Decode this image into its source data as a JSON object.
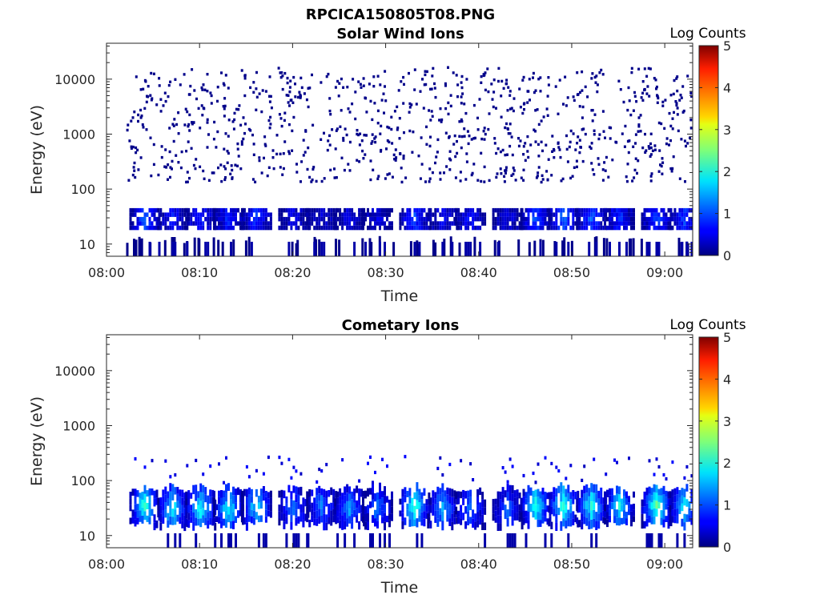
{
  "figure": {
    "title": "RPCICA150805T08.PNG"
  },
  "chart_data": [
    {
      "type": "heatmap",
      "title": "Solar Wind Ions",
      "xlabel": "Time",
      "ylabel": "Energy (eV)",
      "x_ticks": [
        "08:00",
        "08:10",
        "08:20",
        "08:30",
        "08:40",
        "08:50",
        "09:00"
      ],
      "xlim": [
        "08:00",
        "09:03"
      ],
      "y_scale": "log",
      "y_ticks": [
        "10",
        "100",
        "1000",
        "10000"
      ],
      "ylim": [
        6,
        45000
      ],
      "colorbar": {
        "label": "Log Counts",
        "range": [
          0,
          5
        ],
        "ticks": [
          "0",
          "1",
          "2",
          "3",
          "4",
          "5"
        ],
        "colormap": "jet"
      },
      "data_start": "08:02",
      "data_end": "09:03",
      "bursts": [
        {
          "time": "08:04",
          "peak_energy": 30,
          "log_counts": 1.1
        },
        {
          "time": "08:07",
          "peak_energy": 30,
          "log_counts": 0.7
        },
        {
          "time": "08:10",
          "peak_energy": 30,
          "log_counts": 0.8
        },
        {
          "time": "08:13",
          "peak_energy": 30,
          "log_counts": 0.8
        },
        {
          "time": "08:16",
          "peak_energy": 30,
          "log_counts": 0.9
        },
        {
          "time": "08:20",
          "peak_energy": 30,
          "log_counts": 0.5
        },
        {
          "time": "08:23",
          "peak_energy": 30,
          "log_counts": 0.5
        },
        {
          "time": "08:26",
          "peak_energy": 30,
          "log_counts": 0.5
        },
        {
          "time": "08:29",
          "peak_energy": 30,
          "log_counts": 0.5
        },
        {
          "time": "08:33",
          "peak_energy": 30,
          "log_counts": 1.0
        },
        {
          "time": "08:36",
          "peak_energy": 30,
          "log_counts": 0.6
        },
        {
          "time": "08:39",
          "peak_energy": 30,
          "log_counts": 0.7
        },
        {
          "time": "08:43",
          "peak_energy": 30,
          "log_counts": 0.5
        },
        {
          "time": "08:46",
          "peak_energy": 30,
          "log_counts": 1.1
        },
        {
          "time": "08:49",
          "peak_energy": 30,
          "log_counts": 1.2
        },
        {
          "time": "08:52",
          "peak_energy": 30,
          "log_counts": 1.1
        },
        {
          "time": "08:55",
          "peak_energy": 30,
          "log_counts": 0.9
        },
        {
          "time": "08:59",
          "peak_energy": 30,
          "log_counts": 1.0
        },
        {
          "time": "09:02",
          "peak_energy": 30,
          "log_counts": 1.0
        }
      ],
      "background": "sparse single counts (log 0) scattered 150–10000 eV, occasional spikes to 15000 eV"
    },
    {
      "type": "heatmap",
      "title": "Cometary Ions",
      "xlabel": "Time",
      "ylabel": "Energy (eV)",
      "x_ticks": [
        "08:00",
        "08:10",
        "08:20",
        "08:30",
        "08:40",
        "08:50",
        "09:00"
      ],
      "xlim": [
        "08:00",
        "09:03"
      ],
      "y_scale": "log",
      "y_ticks": [
        "10",
        "100",
        "1000",
        "10000"
      ],
      "ylim": [
        6,
        45000
      ],
      "colorbar": {
        "label": "Log Counts",
        "range": [
          0,
          5
        ],
        "ticks": [
          "0",
          "1",
          "2",
          "3",
          "4",
          "5"
        ],
        "colormap": "jet"
      },
      "bursts": [
        {
          "time": "08:04",
          "peak_energy": 35,
          "log_counts": 2.2
        },
        {
          "time": "08:07",
          "peak_energy": 30,
          "log_counts": 2.0
        },
        {
          "time": "08:10",
          "peak_energy": 30,
          "log_counts": 2.1
        },
        {
          "time": "08:13",
          "peak_energy": 30,
          "log_counts": 2.0
        },
        {
          "time": "08:16",
          "peak_energy": 35,
          "log_counts": 1.9
        },
        {
          "time": "08:20",
          "peak_energy": 30,
          "log_counts": 1.3
        },
        {
          "time": "08:23",
          "peak_energy": 35,
          "log_counts": 1.3
        },
        {
          "time": "08:26",
          "peak_energy": 30,
          "log_counts": 1.4
        },
        {
          "time": "08:29",
          "peak_energy": 30,
          "log_counts": 1.3
        },
        {
          "time": "08:33",
          "peak_energy": 35,
          "log_counts": 2.3
        },
        {
          "time": "08:36",
          "peak_energy": 30,
          "log_counts": 1.6
        },
        {
          "time": "08:39",
          "peak_energy": 30,
          "log_counts": 1.3
        },
        {
          "time": "08:43",
          "peak_energy": 30,
          "log_counts": 1.1
        },
        {
          "time": "08:46",
          "peak_energy": 35,
          "log_counts": 2.2
        },
        {
          "time": "08:49",
          "peak_energy": 35,
          "log_counts": 2.3
        },
        {
          "time": "08:52",
          "peak_energy": 35,
          "log_counts": 2.1
        },
        {
          "time": "08:55",
          "peak_energy": 35,
          "log_counts": 1.9
        },
        {
          "time": "08:59",
          "peak_energy": 35,
          "log_counts": 2.4
        },
        {
          "time": "09:02",
          "peak_energy": 35,
          "log_counts": 1.9
        }
      ]
    }
  ]
}
